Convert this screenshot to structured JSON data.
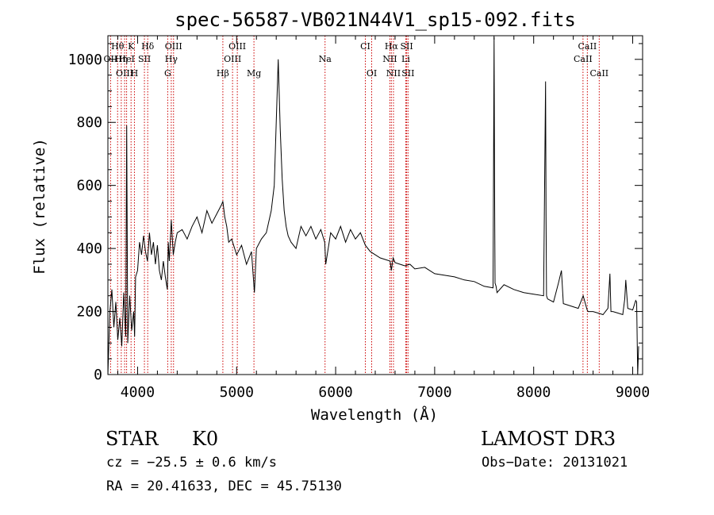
{
  "chart_data": {
    "type": "line",
    "title": "spec-56587-VB021N44V1_sp15-092.fits",
    "xlabel": "Wavelength (Å)",
    "ylabel": "Flux (relative)",
    "xlim": [
      3700,
      9100
    ],
    "ylim": [
      0,
      1075
    ],
    "xticks": [
      4000,
      5000,
      6000,
      7000,
      8000,
      9000
    ],
    "yticks": [
      0,
      200,
      400,
      600,
      800,
      1000
    ],
    "series": [
      {
        "name": "flux",
        "x": [
          3700,
          3720,
          3740,
          3760,
          3780,
          3800,
          3820,
          3840,
          3860,
          3880,
          3890,
          3900,
          3920,
          3940,
          3960,
          3970,
          3980,
          4000,
          4020,
          4040,
          4060,
          4080,
          4100,
          4120,
          4140,
          4160,
          4180,
          4200,
          4220,
          4240,
          4260,
          4280,
          4300,
          4310,
          4320,
          4340,
          4360,
          4380,
          4400,
          4450,
          4500,
          4550,
          4600,
          4650,
          4700,
          4750,
          4800,
          4850,
          4861,
          4880,
          4900,
          4920,
          4950,
          5000,
          5050,
          5100,
          5150,
          5180,
          5200,
          5250,
          5300,
          5350,
          5380,
          5400,
          5420,
          5440,
          5460,
          5480,
          5500,
          5520,
          5550,
          5600,
          5650,
          5700,
          5750,
          5800,
          5850,
          5890,
          5900,
          5950,
          6000,
          6050,
          6100,
          6150,
          6200,
          6250,
          6300,
          6350,
          6400,
          6450,
          6500,
          6550,
          6563,
          6580,
          6600,
          6650,
          6700,
          6750,
          6800,
          6900,
          7000,
          7100,
          7200,
          7300,
          7400,
          7500,
          7590,
          7600,
          7605,
          7610,
          7620,
          7630,
          7700,
          7800,
          7900,
          8000,
          8100,
          8120,
          8125,
          8130,
          8140,
          8200,
          8250,
          8280,
          8300,
          8350,
          8400,
          8450,
          8500,
          8540,
          8550,
          8600,
          8650,
          8700,
          8750,
          8770,
          8780,
          8800,
          8850,
          8900,
          8920,
          8930,
          8950,
          9000,
          9030,
          9040,
          9050,
          9060
        ],
        "values": [
          0,
          200,
          270,
          150,
          230,
          110,
          180,
          90,
          260,
          120,
          790,
          100,
          250,
          140,
          200,
          120,
          310,
          330,
          420,
          380,
          440,
          390,
          360,
          450,
          380,
          420,
          350,
          410,
          330,
          300,
          360,
          310,
          270,
          420,
          360,
          490,
          380,
          420,
          450,
          460,
          430,
          470,
          500,
          450,
          520,
          480,
          510,
          540,
          550,
          500,
          470,
          420,
          430,
          380,
          410,
          350,
          390,
          260,
          400,
          430,
          450,
          520,
          600,
          800,
          1000,
          780,
          620,
          520,
          470,
          440,
          420,
          400,
          470,
          440,
          470,
          430,
          460,
          420,
          350,
          450,
          430,
          470,
          420,
          460,
          430,
          450,
          410,
          390,
          380,
          370,
          365,
          360,
          330,
          370,
          355,
          350,
          345,
          350,
          335,
          340,
          320,
          315,
          310,
          300,
          295,
          280,
          275,
          1070,
          600,
          290,
          280,
          260,
          285,
          270,
          260,
          255,
          250,
          930,
          500,
          250,
          240,
          230,
          290,
          330,
          225,
          220,
          215,
          210,
          250,
          205,
          200,
          200,
          195,
          190,
          210,
          320,
          200,
          200,
          195,
          190,
          240,
          300,
          210,
          205,
          235,
          230,
          0,
          90
        ]
      }
    ],
    "line_labels": [
      {
        "label": "Hθ",
        "row": 1,
        "x": 3798
      },
      {
        "label": "K",
        "row": 1,
        "x": 3934
      },
      {
        "label": "Hδ",
        "row": 1,
        "x": 4102
      },
      {
        "label": "OIII",
        "row": 1,
        "x": 4363
      },
      {
        "label": "OIII",
        "row": 1,
        "x": 5007
      },
      {
        "label": "CI",
        "row": 1,
        "x": 6300
      },
      {
        "label": "Hα",
        "row": 1,
        "x": 6563
      },
      {
        "label": "SII",
        "row": 1,
        "x": 6717
      },
      {
        "label": "CaII",
        "row": 1,
        "x": 8542
      },
      {
        "label": "OII",
        "row": 2,
        "x": 3727
      },
      {
        "label": "Hη",
        "row": 2,
        "x": 3835
      },
      {
        "label": "HeI",
        "row": 2,
        "x": 3889
      },
      {
        "label": "SII",
        "row": 2,
        "x": 4069
      },
      {
        "label": "Hγ",
        "row": 2,
        "x": 4340
      },
      {
        "label": "OIII",
        "row": 2,
        "x": 4959
      },
      {
        "label": "Na",
        "row": 2,
        "x": 5893
      },
      {
        "label": "NII",
        "row": 2,
        "x": 6548
      },
      {
        "label": "Li",
        "row": 2,
        "x": 6708
      },
      {
        "label": "CaII",
        "row": 2,
        "x": 8498
      },
      {
        "label": "OIII",
        "row": 3,
        "x": 3869
      },
      {
        "label": "H",
        "row": 3,
        "x": 3968
      },
      {
        "label": "G",
        "row": 3,
        "x": 4304
      },
      {
        "label": "Hβ",
        "row": 3,
        "x": 4861
      },
      {
        "label": "Mg",
        "row": 3,
        "x": 5175
      },
      {
        "label": "OI",
        "row": 3,
        "x": 6364
      },
      {
        "label": "NII",
        "row": 3,
        "x": 6584
      },
      {
        "label": "SII",
        "row": 3,
        "x": 6731
      },
      {
        "label": "CaII",
        "row": 3,
        "x": 8662
      }
    ],
    "line_markers": [
      3727,
      3798,
      3835,
      3869,
      3889,
      3934,
      3968,
      4069,
      4102,
      4304,
      4340,
      4363,
      4861,
      4959,
      5007,
      5175,
      5893,
      6300,
      6364,
      6548,
      6563,
      6584,
      6708,
      6717,
      6731,
      8498,
      8542,
      8662
    ],
    "marker_color": "#cc0000"
  },
  "info": {
    "class": "STAR",
    "subclass": "K0",
    "cz": "cz = −25.5 ± 0.6 km/s",
    "radec": "RA =  20.41633, DEC =  45.75130",
    "survey": "LAMOST DR3",
    "obs_date": "Obs−Date: 20131021"
  }
}
